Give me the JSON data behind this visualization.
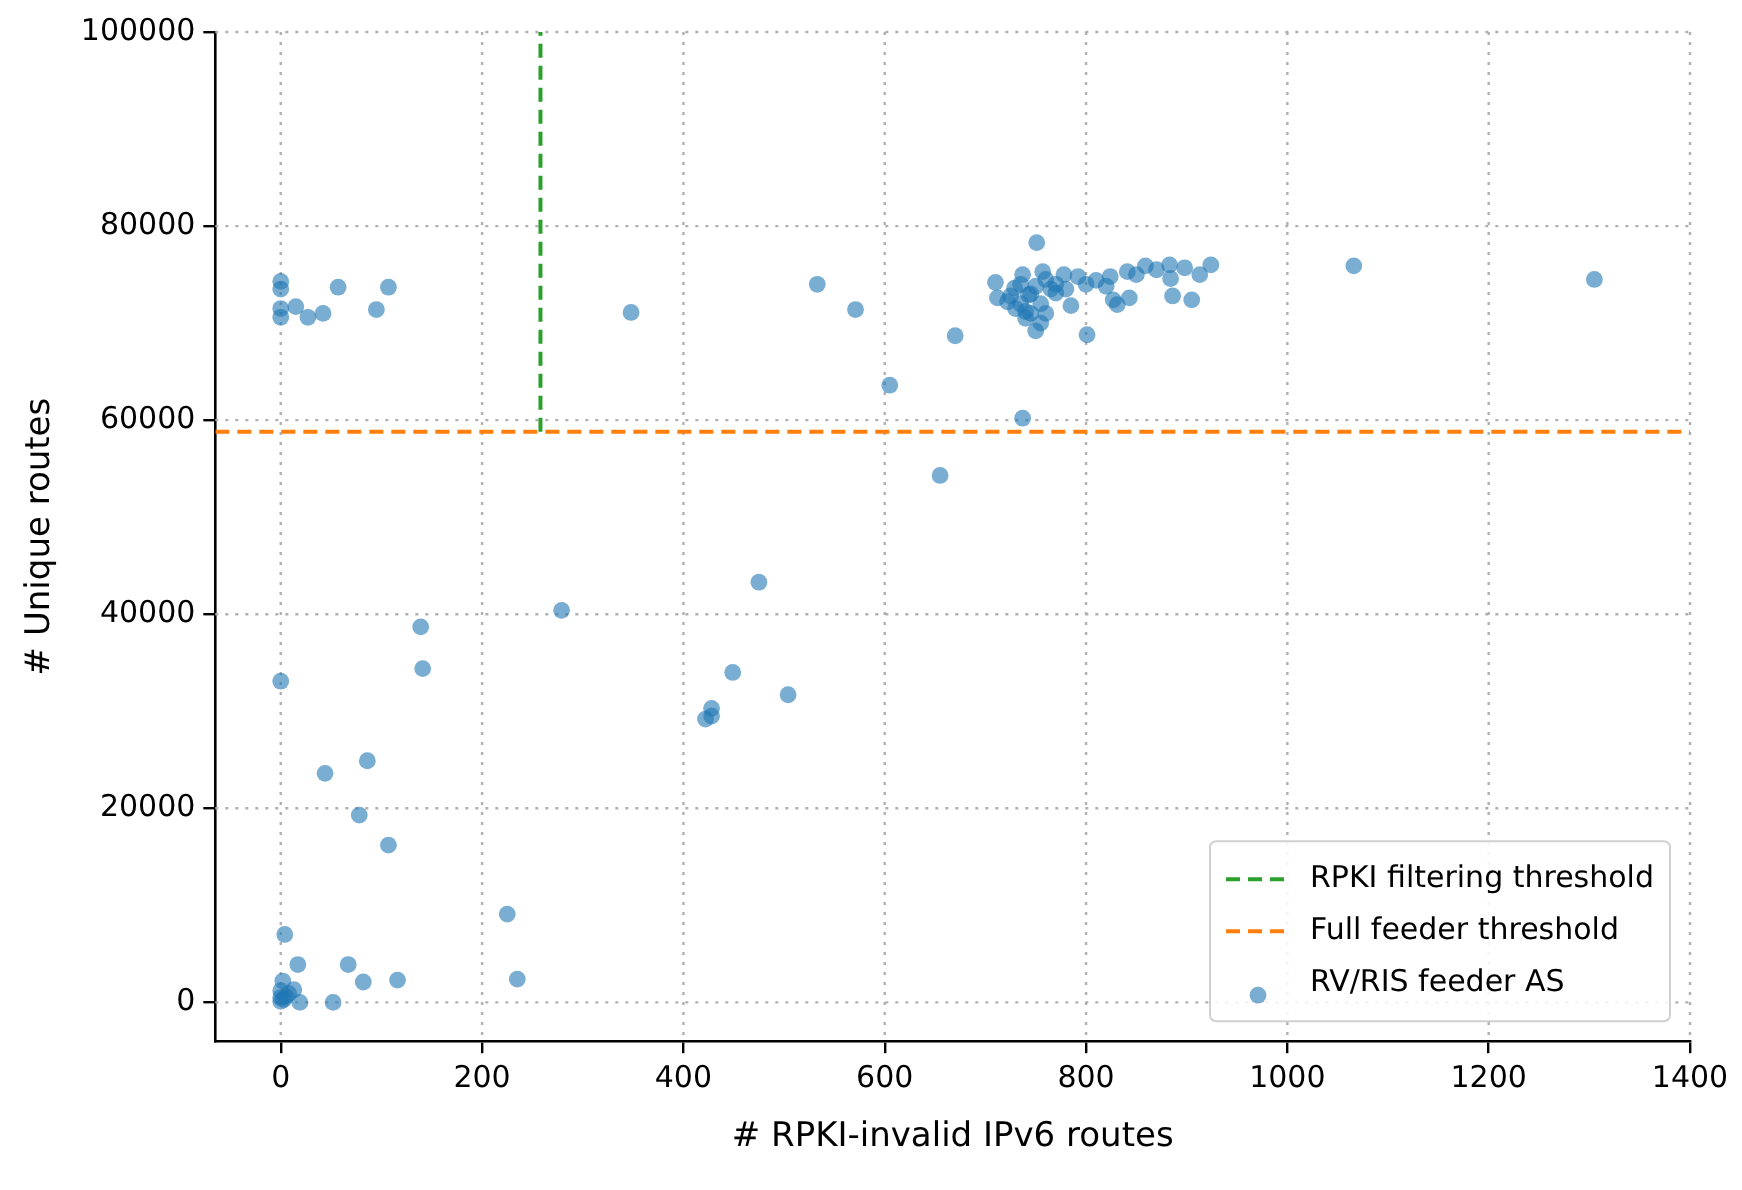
{
  "chart_data": {
    "type": "scatter",
    "xlabel": "# RPKI-invalid IPv6 routes",
    "ylabel": "# Unique routes",
    "xlim": [
      -65,
      1400
    ],
    "ylim": [
      -4000,
      100000
    ],
    "xticks": [
      0,
      200,
      400,
      600,
      800,
      1000,
      1200,
      1400
    ],
    "yticks": [
      0,
      20000,
      40000,
      60000,
      80000,
      100000
    ],
    "grid": true,
    "legend": "bottom right",
    "marker": "circle",
    "series": [
      {
        "name": "RPKI filtering threshold",
        "type": "line",
        "line_style": "dashed",
        "marker": "none",
        "color": "#2ca02c",
        "x": [
          258,
          258
        ],
        "values": [
          58800,
          100000
        ]
      },
      {
        "name": "Full feeder threshold",
        "type": "line",
        "line_style": "dashed",
        "marker": "none",
        "color": "#ff7f0e",
        "x": [
          -65,
          1400
        ],
        "values": [
          58800,
          58800
        ]
      },
      {
        "name": "RV/RIS feeder AS",
        "color": "#1f77b4",
        "x": [
          0,
          0,
          0,
          0,
          15,
          27,
          42,
          57,
          95,
          107,
          348,
          533,
          571,
          670,
          605,
          737,
          655,
          751,
          710,
          712,
          750,
          801,
          785,
          810,
          770,
          831,
          827,
          843,
          886,
          905,
          884,
          913,
          924,
          898,
          883,
          859,
          841,
          824,
          792,
          778,
          757,
          737,
          729,
          722,
          740,
          743,
          1066,
          1305,
          735,
          745,
          755,
          760,
          765,
          730,
          740,
          750,
          725,
          735,
          745,
          755,
          760,
          770,
          780,
          800,
          820,
          850,
          870,
          475,
          279,
          139,
          141,
          0,
          449,
          504,
          428,
          428,
          422,
          86,
          44,
          78,
          107,
          225,
          4,
          17,
          67,
          82,
          116,
          235,
          2,
          13,
          0,
          19,
          52,
          0,
          0,
          5,
          3,
          8
        ],
        "values": [
          74300,
          73500,
          71500,
          70600,
          71700,
          70600,
          71000,
          73700,
          71400,
          73700,
          71100,
          74000,
          71400,
          68700,
          63600,
          60200,
          54300,
          78300,
          74200,
          72600,
          69200,
          68800,
          71800,
          74400,
          73100,
          71900,
          72400,
          72600,
          72800,
          72400,
          74600,
          75000,
          76000,
          75700,
          76000,
          75900,
          75300,
          74800,
          74800,
          75000,
          75300,
          75000,
          73600,
          72200,
          71200,
          72900,
          75900,
          74500,
          74000,
          73000,
          72000,
          74500,
          73500,
          71500,
          70500,
          73800,
          72800,
          72000,
          71000,
          70000,
          71000,
          74000,
          73500,
          74000,
          73800,
          75000,
          75500,
          43300,
          40400,
          38700,
          34400,
          33100,
          34000,
          31700,
          30300,
          29500,
          29200,
          24900,
          23600,
          19300,
          16200,
          9100,
          7000,
          3900,
          3900,
          2100,
          2300,
          2400,
          2200,
          1300,
          1200,
          0,
          0,
          100,
          500,
          600,
          300,
          900
        ]
      }
    ]
  }
}
